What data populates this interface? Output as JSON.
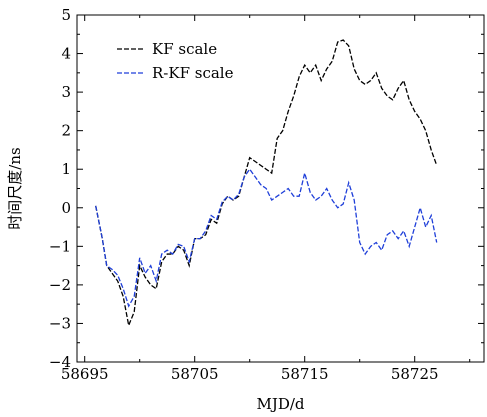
{
  "chart_data": {
    "type": "line",
    "xlabel": "MJD/d",
    "ylabel": "时间尺度/ns",
    "xlim": [
      58694.3,
      58731.3
    ],
    "ylim": [
      -4,
      5
    ],
    "xticks": [
      58695,
      58705,
      58715,
      58725
    ],
    "yticks": [
      -4,
      -3,
      -2,
      -1,
      0,
      1,
      2,
      3,
      4,
      5
    ],
    "grid": false,
    "legend_position": "top-left",
    "series": [
      {
        "name": "KF scale",
        "color": "#000000",
        "dash": "dashed",
        "x": [
          58696.0,
          58696.6,
          58697.0,
          58697.5,
          58698.0,
          58698.5,
          58699.0,
          58699.5,
          58700.0,
          58700.5,
          58701.0,
          58701.5,
          58702.0,
          58702.5,
          58703.0,
          58703.5,
          58704.0,
          58704.5,
          58705.0,
          58705.5,
          58706.0,
          58706.5,
          58707.0,
          58707.5,
          58708.0,
          58708.5,
          58709.0,
          58709.5,
          58710.0,
          58710.5,
          58711.0,
          58711.5,
          58712.0,
          58712.5,
          58713.0,
          58713.5,
          58714.0,
          58714.5,
          58715.0,
          58715.5,
          58716.0,
          58716.5,
          58717.0,
          58717.5,
          58718.0,
          58718.5,
          58719.0,
          58719.5,
          58720.0,
          58720.5,
          58721.0,
          58721.5,
          58722.0,
          58722.5,
          58723.0,
          58723.5,
          58724.0,
          58724.5,
          58725.0,
          58725.5,
          58726.0,
          58726.5,
          58727.0
        ],
        "y": [
          0.05,
          -0.8,
          -1.5,
          -1.7,
          -1.9,
          -2.3,
          -3.05,
          -2.7,
          -1.5,
          -1.8,
          -2.0,
          -2.1,
          -1.4,
          -1.2,
          -1.2,
          -1.0,
          -1.1,
          -1.5,
          -0.8,
          -0.8,
          -0.7,
          -0.3,
          -0.4,
          0.1,
          0.3,
          0.2,
          0.3,
          0.8,
          1.3,
          1.2,
          1.1,
          1.0,
          0.9,
          1.8,
          2.0,
          2.5,
          2.9,
          3.4,
          3.7,
          3.5,
          3.7,
          3.3,
          3.6,
          3.8,
          4.3,
          4.35,
          4.2,
          3.6,
          3.3,
          3.2,
          3.3,
          3.5,
          3.1,
          2.9,
          2.8,
          3.1,
          3.3,
          2.8,
          2.5,
          2.3,
          2.0,
          1.5,
          1.1
        ]
      },
      {
        "name": "R-KF scale",
        "color": "#1f3fd9",
        "dash": "dashed",
        "x": [
          58696.0,
          58696.6,
          58697.0,
          58697.5,
          58698.0,
          58698.5,
          58699.0,
          58699.5,
          58700.0,
          58700.5,
          58701.0,
          58701.5,
          58702.0,
          58702.5,
          58703.0,
          58703.5,
          58704.0,
          58704.5,
          58705.0,
          58705.5,
          58706.0,
          58706.5,
          58707.0,
          58707.5,
          58708.0,
          58708.5,
          58709.0,
          58709.5,
          58710.0,
          58710.5,
          58711.0,
          58711.5,
          58712.0,
          58712.5,
          58713.0,
          58713.5,
          58714.0,
          58714.5,
          58715.0,
          58715.5,
          58716.0,
          58716.5,
          58717.0,
          58717.5,
          58718.0,
          58718.5,
          58719.0,
          58719.5,
          58720.0,
          58720.5,
          58721.0,
          58721.5,
          58722.0,
          58722.5,
          58723.0,
          58723.5,
          58724.0,
          58724.5,
          58725.0,
          58725.5,
          58726.0,
          58726.5,
          58727.0
        ],
        "y": [
          0.05,
          -0.8,
          -1.5,
          -1.6,
          -1.75,
          -2.1,
          -2.55,
          -2.3,
          -1.3,
          -1.7,
          -1.5,
          -1.9,
          -1.2,
          -1.1,
          -1.2,
          -0.95,
          -1.0,
          -1.4,
          -0.8,
          -0.8,
          -0.6,
          -0.2,
          -0.3,
          0.15,
          0.3,
          0.2,
          0.35,
          0.8,
          1.0,
          0.8,
          0.6,
          0.5,
          0.2,
          0.3,
          0.4,
          0.5,
          0.3,
          0.3,
          0.9,
          0.4,
          0.2,
          0.3,
          0.5,
          0.2,
          0.0,
          0.1,
          0.65,
          0.2,
          -0.9,
          -1.2,
          -1.0,
          -0.9,
          -1.1,
          -0.7,
          -0.6,
          -0.8,
          -0.6,
          -1.0,
          -0.5,
          0.0,
          -0.5,
          -0.2,
          -0.9
        ]
      }
    ]
  }
}
